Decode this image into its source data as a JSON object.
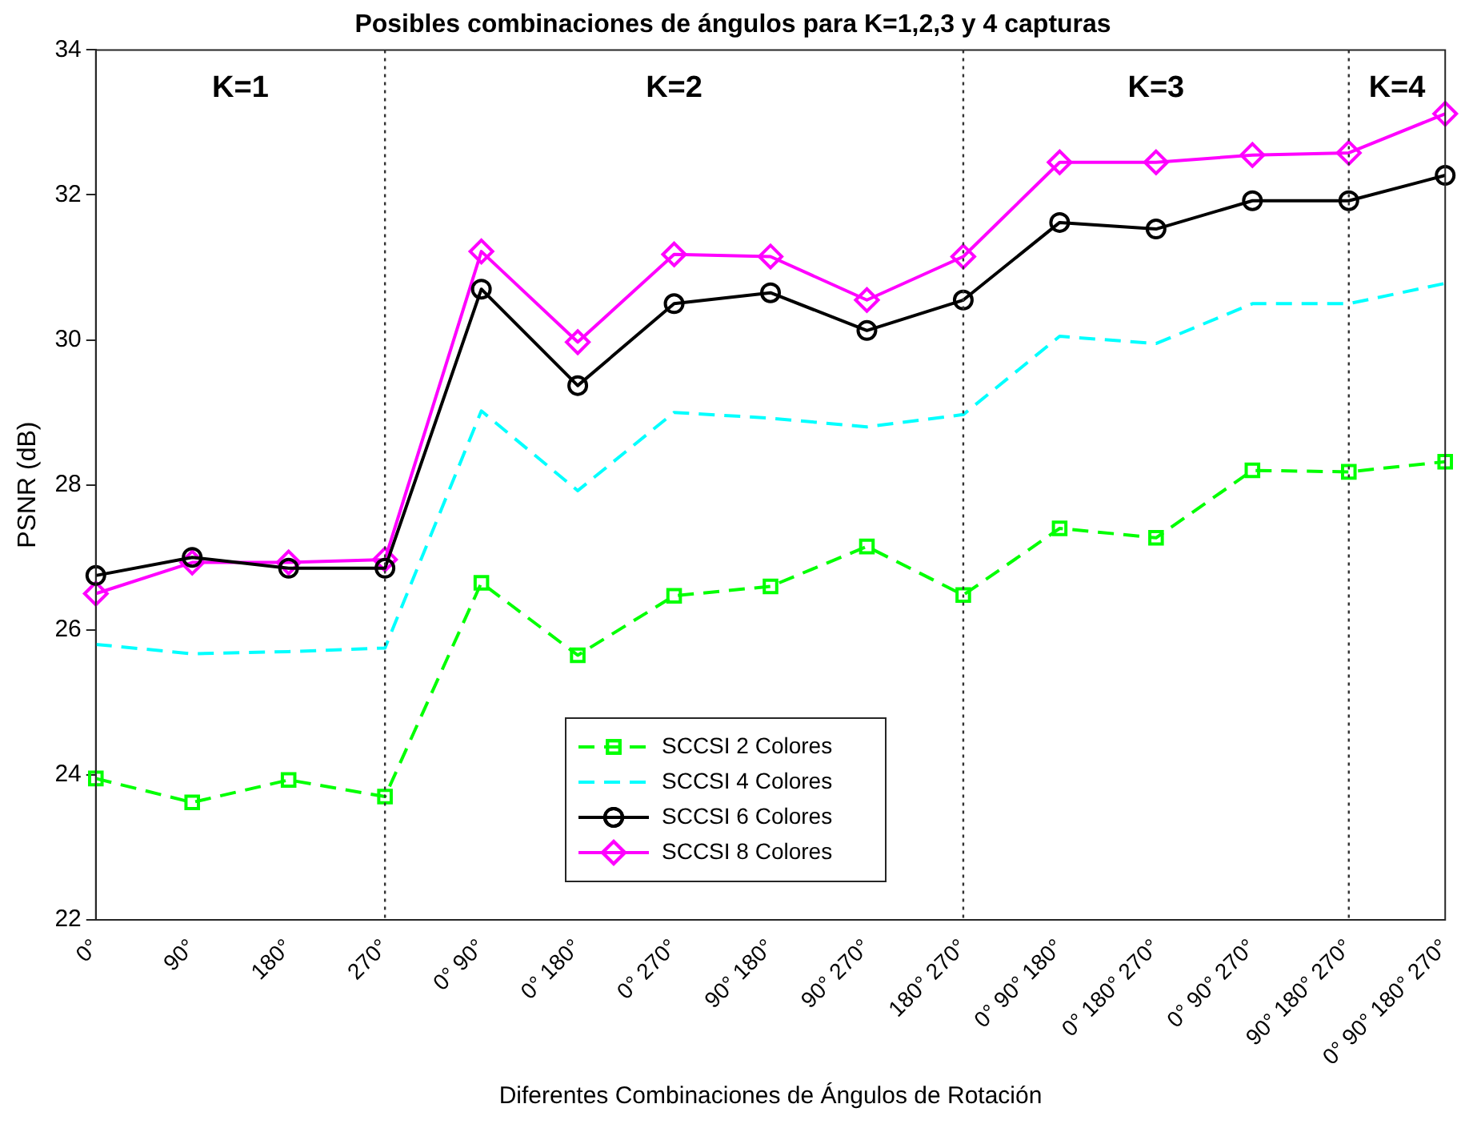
{
  "chart_data": {
    "type": "line",
    "title": "Posibles combinaciones de ángulos para K=1,2,3 y 4 capturas",
    "xlabel": "Diferentes Combinaciones de Ángulos de Rotación",
    "ylabel": "PSNR (dB)",
    "categories": [
      "0°",
      "90°",
      "180°",
      "270°",
      "0° 90°",
      "0° 180°",
      "0° 270°",
      "90° 180°",
      "90° 270°",
      "180° 270°",
      "0° 90° 180°",
      "0° 180° 270°",
      "0° 90° 270°",
      "90° 180° 270°",
      "0° 90° 180° 270°"
    ],
    "series": [
      {
        "name": "SCCSI 2 Colores",
        "color": "#00ff00",
        "marker": "square",
        "line_style": "dashed",
        "values": [
          23.95,
          23.62,
          23.93,
          23.7,
          26.65,
          25.65,
          26.47,
          26.6,
          27.15,
          26.48,
          27.4,
          27.27,
          28.2,
          28.18,
          28.32
        ]
      },
      {
        "name": "SCCSI 4 Colores",
        "color": "#00ffff",
        "marker": "none",
        "line_style": "dashed",
        "values": [
          25.8,
          25.67,
          25.7,
          25.75,
          29.02,
          27.92,
          29.0,
          28.92,
          28.8,
          28.97,
          30.05,
          29.95,
          30.5,
          30.5,
          30.78
        ]
      },
      {
        "name": "SCCSI 6 Colores",
        "color": "#000000",
        "marker": "circle",
        "line_style": "solid",
        "values": [
          26.75,
          27.0,
          26.85,
          26.85,
          30.7,
          29.37,
          30.5,
          30.65,
          30.13,
          30.55,
          31.62,
          31.53,
          31.92,
          31.92,
          32.27
        ]
      },
      {
        "name": "SCCSI 8 Colores",
        "color": "#ff00ff",
        "marker": "diamond",
        "line_style": "solid",
        "values": [
          26.5,
          26.93,
          26.93,
          26.97,
          31.22,
          29.97,
          31.18,
          31.15,
          30.55,
          31.15,
          32.45,
          32.45,
          32.55,
          32.58,
          33.12
        ]
      }
    ],
    "ylim": [
      22,
      34
    ],
    "yticks": [
      22,
      24,
      26,
      28,
      30,
      32,
      34
    ],
    "grid": false,
    "legend": "bottom",
    "ref_lines": [
      {
        "axis": "x",
        "value": "270°",
        "color": "#333333",
        "line_style": "dotted"
      },
      {
        "axis": "x",
        "value": "180° 270°",
        "color": "#333333",
        "line_style": "dotted"
      },
      {
        "axis": "x",
        "value": "90° 180° 270°",
        "color": "#333333",
        "line_style": "dotted"
      }
    ],
    "annotations": [
      "K=1",
      "K=2",
      "K=3",
      "K=4"
    ]
  }
}
